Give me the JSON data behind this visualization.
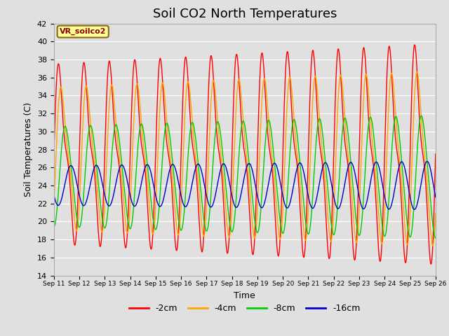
{
  "title": "Soil CO2 North Temperatures",
  "xlabel": "Time",
  "ylabel": "Soil Temperatures (C)",
  "annotation": "VR_soilco2",
  "ylim": [
    14,
    42
  ],
  "xtick_labels": [
    "Sep 11",
    "Sep 12",
    "Sep 13",
    "Sep 14",
    "Sep 15",
    "Sep 16",
    "Sep 17",
    "Sep 18",
    "Sep 19",
    "Sep 20",
    "Sep 21",
    "Sep 22",
    "Sep 23",
    "Sep 24",
    "Sep 25",
    "Sep 26"
  ],
  "legend_order": [
    "-2cm",
    "-4cm",
    "-8cm",
    "-16cm"
  ],
  "series_params": {
    "-2cm": {
      "color": "#FF0000",
      "amplitude": 11.5,
      "mean": 27.5,
      "phase": 0.0,
      "sharp": 0.35
    },
    "-4cm": {
      "color": "#FFA500",
      "amplitude": 9.0,
      "mean": 27.0,
      "phase": 0.08,
      "sharp": 0.25
    },
    "-8cm": {
      "color": "#00CC00",
      "amplitude": 6.0,
      "mean": 25.0,
      "phase": 0.22,
      "sharp": 0.1
    },
    "-16cm": {
      "color": "#0000CC",
      "amplitude": 2.2,
      "mean": 24.0,
      "phase": 0.42,
      "sharp": 0.0
    }
  },
  "background_color": "#E0E0E0",
  "plot_bg_color": "#E0E0E0",
  "grid_color": "#FFFFFF",
  "title_fontsize": 13,
  "annotation_bg": "#FFFF99",
  "annotation_border": "#8B6914",
  "figsize": [
    6.4,
    4.8
  ],
  "dpi": 100
}
